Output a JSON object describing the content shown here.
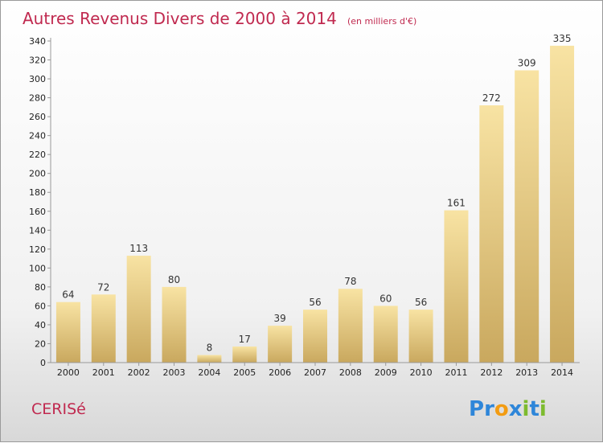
{
  "chart_data": {
    "type": "bar",
    "title": "Autres Revenus Divers de 2000 à 2014",
    "subtitle": "(en milliers d'€)",
    "categories": [
      "2000",
      "2001",
      "2002",
      "2003",
      "2004",
      "2005",
      "2006",
      "2007",
      "2008",
      "2009",
      "2010",
      "2011",
      "2012",
      "2013",
      "2014"
    ],
    "values": [
      64,
      72,
      113,
      80,
      8,
      17,
      39,
      56,
      78,
      60,
      56,
      161,
      272,
      309,
      335
    ],
    "ylim": [
      0,
      340
    ],
    "yticks": [
      0,
      20,
      40,
      60,
      80,
      100,
      120,
      140,
      160,
      180,
      200,
      220,
      240,
      260,
      280,
      300,
      320,
      340
    ],
    "grid": false,
    "xlabel": "",
    "ylabel": "",
    "bar_color_light": "#f8e3a3",
    "bar_color_dark": "#c9a85e",
    "accent_color": "#c0294f"
  },
  "footer": {
    "town": "CERISé",
    "brand": "Proxiti"
  }
}
